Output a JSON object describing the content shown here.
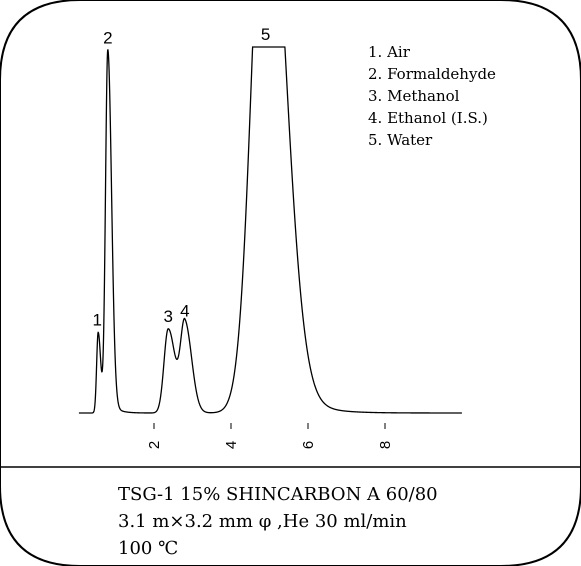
{
  "chart_data": {
    "type": "line",
    "title": "",
    "xlabel": "",
    "ylabel": "",
    "xlim": [
      0,
      10
    ],
    "ylim": [
      0,
      100
    ],
    "x_ticks": [
      2,
      4,
      6,
      8
    ],
    "grid": false,
    "legend_placement": "top-right",
    "peaks": [
      {
        "number": "1",
        "name": "Air",
        "rt": 0.55,
        "height": 22,
        "width": 0.04
      },
      {
        "number": "2",
        "name": "Formaldehyde",
        "rt": 0.8,
        "height": 99,
        "width": 0.06
      },
      {
        "number": "3",
        "name": "Methanol",
        "rt": 2.37,
        "height": 23,
        "width": 0.11
      },
      {
        "number": "4",
        "name": "Ethanol (I.S.)",
        "rt": 2.8,
        "height": 24.5,
        "width": 0.11
      },
      {
        "number": "5",
        "name": "Water",
        "rt": 4.9,
        "height": 100,
        "width": 0.35,
        "clipped": true
      }
    ]
  },
  "legend": {
    "items": [
      "1.  Air",
      "2.  Formaldehyde",
      "3.  Methanol",
      "4.  Ethanol (I.S.)",
      "5.  Water"
    ]
  },
  "caption": {
    "lines": [
      "TSG-1 15% SHINCARBON A 60/80",
      "3.1 m×3.2 mm φ ,He 30 ml/min",
      "100 ℃"
    ]
  }
}
